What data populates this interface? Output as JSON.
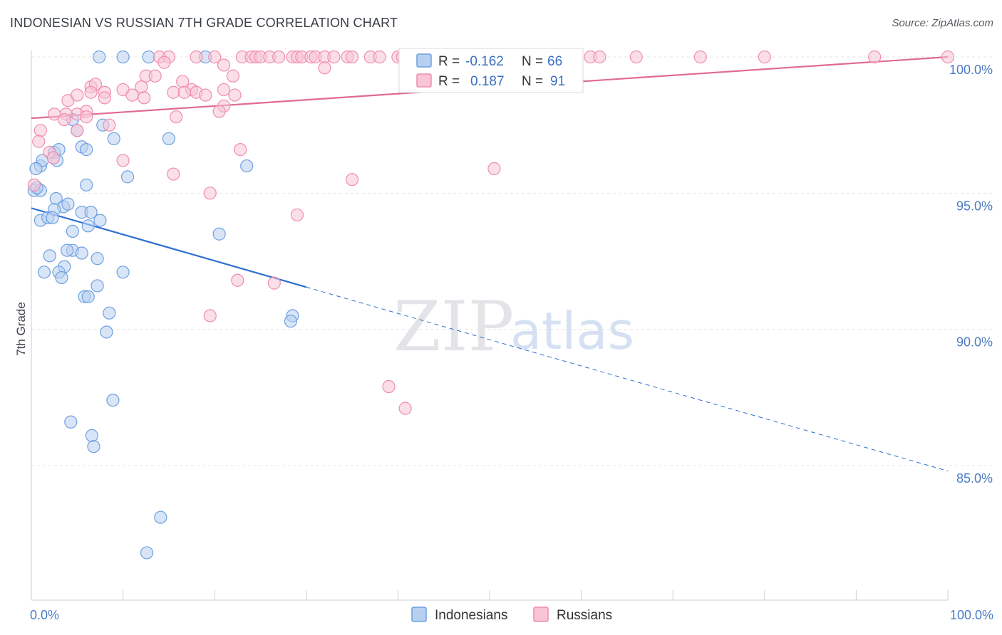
{
  "title": "INDONESIAN VS RUSSIAN 7TH GRADE CORRELATION CHART",
  "source": "Source: ZipAtlas.com",
  "watermark": {
    "zip": "ZIP",
    "atlas": "atlas"
  },
  "chart_data": {
    "type": "scatter",
    "xlabel": "",
    "ylabel": "7th Grade",
    "xlim": [
      0,
      100
    ],
    "ylim": [
      80.5,
      100.5
    ],
    "x_tick_labels": [
      {
        "value": 0,
        "label": "0.0%"
      },
      {
        "value": 100,
        "label": "100.0%"
      }
    ],
    "y_ticks": [
      {
        "value": 100,
        "label": "100.0%"
      },
      {
        "value": 95,
        "label": "95.0%"
      },
      {
        "value": 90,
        "label": "90.0%"
      },
      {
        "value": 85,
        "label": "85.0%"
      }
    ],
    "grid": true,
    "legend_position": "top-center",
    "series": [
      {
        "name": "Indonesians",
        "color": "#6fa0e0",
        "fill": "#b8d0f0",
        "R": "-0.162",
        "N": "66",
        "trend": {
          "x0": 0,
          "y0": 94.45,
          "x1": 30,
          "y1": 91.55,
          "dash_to_x": 100,
          "dash_to_y": 84.8,
          "color": "#2f6fd0"
        },
        "points": [
          [
            7.4,
            100
          ],
          [
            10,
            100
          ],
          [
            12.8,
            100
          ],
          [
            19,
            100
          ],
          [
            2.5,
            96.5
          ],
          [
            3,
            96.6
          ],
          [
            4.5,
            97.7
          ],
          [
            5,
            97.3
          ],
          [
            5.5,
            96.7
          ],
          [
            6,
            96.6
          ],
          [
            7.8,
            97.5
          ],
          [
            9,
            97
          ],
          [
            15,
            97
          ],
          [
            1,
            96
          ],
          [
            1.2,
            96.2
          ],
          [
            2.8,
            96.2
          ],
          [
            0.5,
            95.9
          ],
          [
            0.3,
            95.1
          ],
          [
            1,
            95.1
          ],
          [
            0.6,
            95.2
          ],
          [
            6,
            95.3
          ],
          [
            10.5,
            95.6
          ],
          [
            23.5,
            96
          ],
          [
            2.7,
            94.8
          ],
          [
            3.5,
            94.5
          ],
          [
            2.5,
            94.4
          ],
          [
            4,
            94.6
          ],
          [
            5.5,
            94.3
          ],
          [
            1,
            94
          ],
          [
            1.8,
            94.1
          ],
          [
            2.3,
            94.1
          ],
          [
            6.5,
            94.3
          ],
          [
            6.2,
            93.8
          ],
          [
            7.5,
            94
          ],
          [
            4.5,
            93.6
          ],
          [
            20.5,
            93.5
          ],
          [
            2,
            92.7
          ],
          [
            4.5,
            92.9
          ],
          [
            3.9,
            92.9
          ],
          [
            5.5,
            92.8
          ],
          [
            7.2,
            92.6
          ],
          [
            3.6,
            92.3
          ],
          [
            1.4,
            92.1
          ],
          [
            3,
            92.1
          ],
          [
            10,
            92.1
          ],
          [
            3.3,
            91.9
          ],
          [
            7.2,
            91.6
          ],
          [
            5.8,
            91.2
          ],
          [
            6.2,
            91.2
          ],
          [
            8.5,
            90.6
          ],
          [
            28.5,
            90.5
          ],
          [
            28.3,
            90.3
          ],
          [
            8.2,
            89.9
          ],
          [
            8.9,
            87.4
          ],
          [
            4.3,
            86.6
          ],
          [
            6.6,
            86.1
          ],
          [
            6.8,
            85.7
          ],
          [
            14.1,
            83.1
          ],
          [
            12.6,
            81.8
          ]
        ]
      },
      {
        "name": "Russians",
        "color": "#f08cb0",
        "fill": "#f8c4d6",
        "R": "0.187",
        "N": "91",
        "trend": {
          "x0": 0,
          "y0": 97.75,
          "x1": 100,
          "y1": 100.0,
          "color": "#e06a95"
        },
        "points": [
          [
            14,
            100
          ],
          [
            15,
            100
          ],
          [
            18,
            100
          ],
          [
            20,
            100
          ],
          [
            23,
            100
          ],
          [
            24,
            100
          ],
          [
            24.5,
            100
          ],
          [
            25,
            100
          ],
          [
            26,
            100
          ],
          [
            27,
            100
          ],
          [
            28.5,
            100
          ],
          [
            29,
            100
          ],
          [
            29.5,
            100
          ],
          [
            30.5,
            100
          ],
          [
            31,
            100
          ],
          [
            32,
            100
          ],
          [
            33,
            100
          ],
          [
            34.5,
            100
          ],
          [
            35,
            100
          ],
          [
            37,
            100
          ],
          [
            38,
            100
          ],
          [
            40,
            100
          ],
          [
            40.5,
            100
          ],
          [
            42,
            100
          ],
          [
            46,
            100
          ],
          [
            48,
            100
          ],
          [
            48.5,
            100
          ],
          [
            49,
            100
          ],
          [
            51,
            100
          ],
          [
            53,
            100
          ],
          [
            58,
            100
          ],
          [
            61,
            100
          ],
          [
            62,
            100
          ],
          [
            66,
            100
          ],
          [
            73,
            100
          ],
          [
            80,
            100
          ],
          [
            92,
            100
          ],
          [
            100,
            100
          ],
          [
            14.5,
            99.8
          ],
          [
            21,
            99.7
          ],
          [
            32,
            99.6
          ],
          [
            12.5,
            99.3
          ],
          [
            13.5,
            99.3
          ],
          [
            22,
            99.3
          ],
          [
            16.5,
            99.1
          ],
          [
            6.5,
            98.9
          ],
          [
            7,
            99
          ],
          [
            10,
            98.8
          ],
          [
            12,
            98.9
          ],
          [
            17.5,
            98.8
          ],
          [
            18,
            98.7
          ],
          [
            21,
            98.8
          ],
          [
            6.5,
            98.7
          ],
          [
            8,
            98.7
          ],
          [
            11,
            98.6
          ],
          [
            15.5,
            98.7
          ],
          [
            16.7,
            98.7
          ],
          [
            4,
            98.4
          ],
          [
            5,
            98.6
          ],
          [
            8,
            98.5
          ],
          [
            12.3,
            98.5
          ],
          [
            19,
            98.6
          ],
          [
            22.2,
            98.6
          ],
          [
            21,
            98.2
          ],
          [
            6,
            98
          ],
          [
            5,
            97.9
          ],
          [
            2.5,
            97.9
          ],
          [
            3.8,
            97.9
          ],
          [
            15.8,
            97.8
          ],
          [
            20.5,
            98
          ],
          [
            3.6,
            97.7
          ],
          [
            6,
            97.8
          ],
          [
            8.5,
            97.5
          ],
          [
            5,
            97.3
          ],
          [
            1,
            97.3
          ],
          [
            0.8,
            96.9
          ],
          [
            2,
            96.5
          ],
          [
            2.4,
            96.3
          ],
          [
            10,
            96.2
          ],
          [
            22.8,
            96.6
          ],
          [
            15.5,
            95.7
          ],
          [
            35,
            95.5
          ],
          [
            50.5,
            95.9
          ],
          [
            19.5,
            95
          ],
          [
            0.3,
            95.3
          ],
          [
            29,
            94.2
          ],
          [
            22.5,
            91.8
          ],
          [
            26.5,
            91.7
          ],
          [
            19.5,
            90.5
          ],
          [
            39,
            87.9
          ],
          [
            40.8,
            87.1
          ]
        ]
      }
    ]
  }
}
